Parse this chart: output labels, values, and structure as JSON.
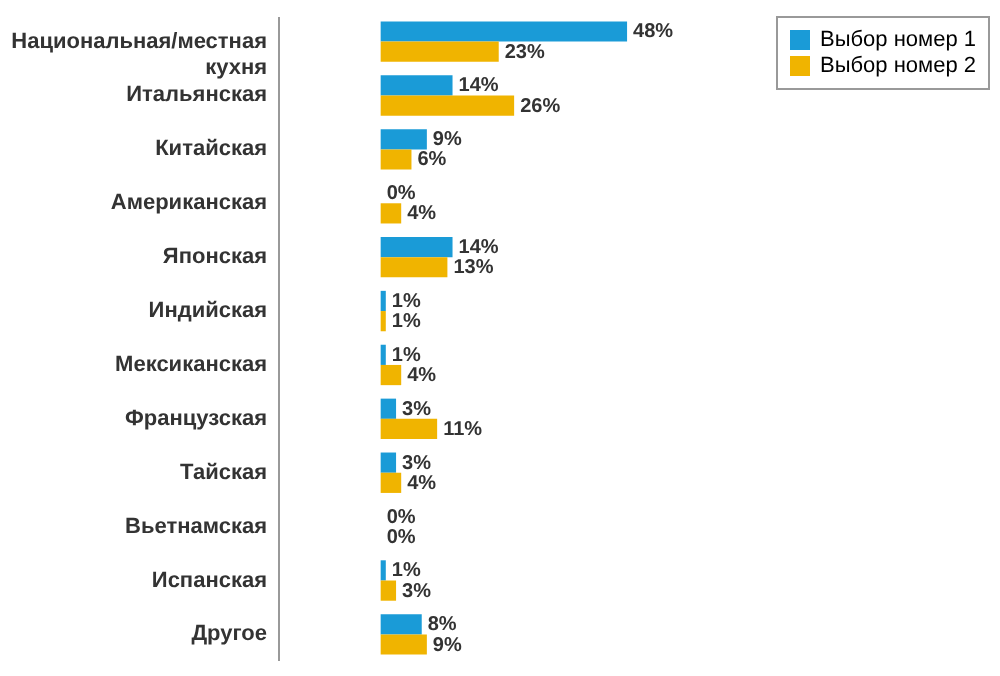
{
  "chart_data": {
    "type": "bar",
    "orientation": "horizontal",
    "categories": [
      "Национальная/местная кухня",
      "Итальянская",
      "Китайская",
      "Американская",
      "Японская",
      "Индийская",
      "Мексиканская",
      "Французская",
      "Тайская",
      "Вьетнамская",
      "Испанская",
      "Другое"
    ],
    "series": [
      {
        "name": "Выбор номер 1",
        "color": "#1a9bd7",
        "values": [
          48,
          14,
          9,
          0,
          14,
          1,
          1,
          3,
          3,
          0,
          1,
          8
        ],
        "value_labels": [
          "48%",
          "14%",
          "9%",
          "0%",
          "14%",
          "1%",
          "1%",
          "3%",
          "3%",
          "0%",
          "1%",
          "8%"
        ]
      },
      {
        "name": "Выбор номер 2",
        "color": "#f0b400",
        "values": [
          23,
          26,
          6,
          4,
          13,
          1,
          4,
          11,
          4,
          0,
          3,
          9
        ],
        "value_labels": [
          "23%",
          "26%",
          "6%",
          "4%",
          "13%",
          "1%",
          "4%",
          "11%",
          "4%",
          "0%",
          "3%",
          "9%"
        ]
      }
    ],
    "legend": "right",
    "grid": false
  }
}
